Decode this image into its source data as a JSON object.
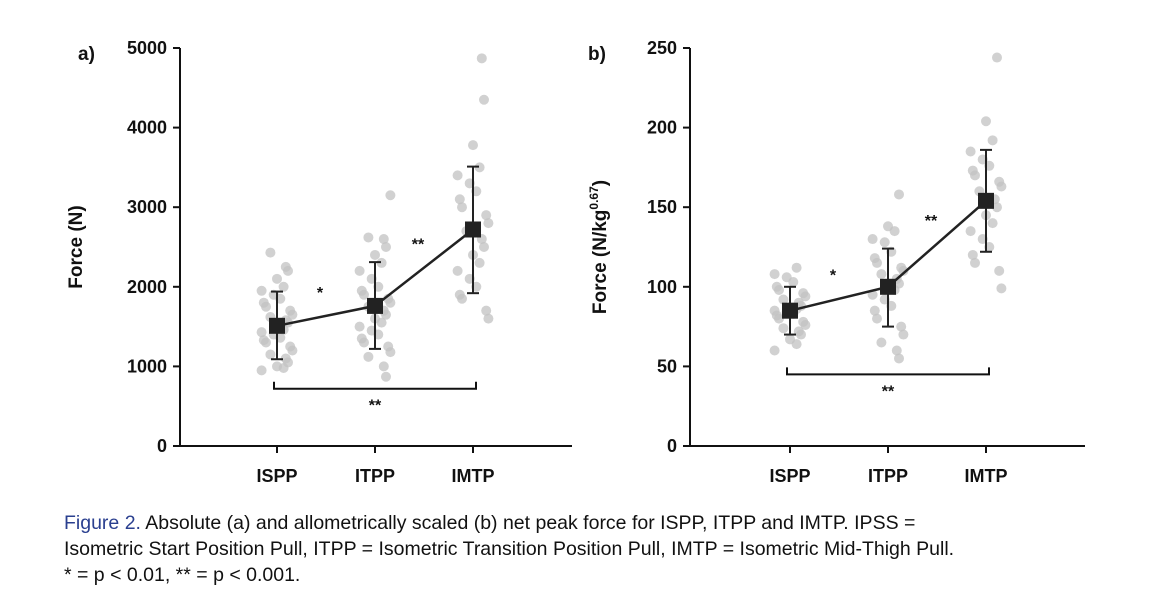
{
  "caption": {
    "label": "Figure 2.",
    "lines": [
      "Absolute (a) and allometrically scaled (b) net peak force for ISPP, ITPP and IMTP. IPSS =",
      "Isometric Start Position Pull, ITPP = Isometric Transition Position Pull, IMTP = Isometric Mid-Thigh Pull.",
      "* = p < 0.01, ** = p < 0.001."
    ]
  },
  "colors": {
    "axis": "#111111",
    "mean_marker": "#222222",
    "individual_points": "#c2c2c2"
  },
  "chart_data": [
    {
      "panel_label": "a)",
      "type": "scatter",
      "title": "",
      "xlabel": "",
      "ylabel": "Force (N)",
      "ylabel_superscript": "",
      "categories": [
        "ISPP",
        "ITPP",
        "IMTP"
      ],
      "ylim": [
        0,
        5000
      ],
      "yticks": [
        0,
        1000,
        2000,
        3000,
        4000,
        5000
      ],
      "ytick_labels": [
        "0",
        "1000",
        "2000",
        "3000",
        "4000",
        "5000"
      ],
      "grid": false,
      "series": [
        {
          "values": [
            1510,
            1760,
            2720
          ],
          "error": [
            [
              1090,
              1940
            ],
            [
              1220,
              2310
            ],
            [
              1920,
              3510
            ]
          ]
        }
      ],
      "individual_points": [
        [
          950,
          980,
          1000,
          1050,
          1100,
          1150,
          1200,
          1250,
          1300,
          1330,
          1360,
          1400,
          1430,
          1460,
          1500,
          1550,
          1580,
          1620,
          1650,
          1700,
          1750,
          1800,
          1850,
          1900,
          1950,
          2000,
          2100,
          2200,
          2250,
          2430
        ],
        [
          870,
          1000,
          1120,
          1180,
          1250,
          1300,
          1350,
          1400,
          1450,
          1500,
          1550,
          1600,
          1650,
          1700,
          1750,
          1800,
          1850,
          1900,
          1950,
          2000,
          2100,
          2200,
          2300,
          2400,
          2500,
          2600,
          2620,
          3150
        ],
        [
          1600,
          1700,
          1850,
          1900,
          2000,
          2100,
          2200,
          2300,
          2400,
          2500,
          2600,
          2700,
          2800,
          2900,
          3000,
          3100,
          3200,
          3300,
          3400,
          3500,
          3780,
          4350,
          4870
        ]
      ],
      "significance": [
        {
          "from": 0,
          "to": 1,
          "label": "*",
          "type": "segment"
        },
        {
          "from": 1,
          "to": 2,
          "label": "**",
          "type": "segment"
        },
        {
          "from": 0,
          "to": 2,
          "label": "**",
          "type": "bracket",
          "y": 720
        }
      ]
    },
    {
      "panel_label": "b)",
      "type": "scatter",
      "title": "",
      "xlabel": "",
      "ylabel": "Force (N/kg",
      "ylabel_superscript": "0.67",
      "ylabel_suffix": ")",
      "categories": [
        "ISPP",
        "ITPP",
        "IMTP"
      ],
      "ylim": [
        0,
        250
      ],
      "yticks": [
        0,
        50,
        100,
        150,
        200,
        250
      ],
      "ytick_labels": [
        "0",
        "50",
        "100",
        "150",
        "200",
        "250"
      ],
      "grid": false,
      "series": [
        {
          "values": [
            85,
            100,
            154
          ],
          "error": [
            [
              70,
              100
            ],
            [
              75,
              124
            ],
            [
              122,
              186
            ]
          ]
        }
      ],
      "individual_points": [
        [
          60,
          64,
          67,
          70,
          72,
          74,
          76,
          78,
          80,
          82,
          83,
          84,
          85,
          86,
          87,
          88,
          90,
          92,
          94,
          96,
          98,
          100,
          103,
          106,
          108,
          112
        ],
        [
          55,
          60,
          65,
          70,
          75,
          80,
          85,
          88,
          92,
          95,
          98,
          100,
          102,
          105,
          108,
          110,
          112,
          115,
          118,
          122,
          128,
          130,
          135,
          138,
          158
        ],
        [
          99,
          110,
          115,
          120,
          125,
          130,
          135,
          140,
          145,
          150,
          155,
          160,
          163,
          166,
          170,
          173,
          176,
          180,
          185,
          192,
          204,
          244
        ]
      ],
      "significance": [
        {
          "from": 0,
          "to": 1,
          "label": "*",
          "type": "segment"
        },
        {
          "from": 1,
          "to": 2,
          "label": "**",
          "type": "segment"
        },
        {
          "from": 0,
          "to": 2,
          "label": "**",
          "type": "bracket",
          "y": 45
        }
      ]
    }
  ]
}
